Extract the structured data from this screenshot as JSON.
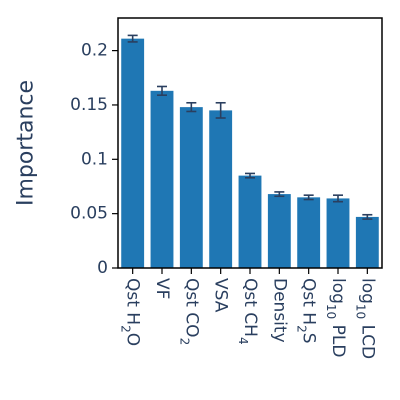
{
  "chart_data": {
    "type": "bar",
    "xlabel": "",
    "ylabel": "Importance",
    "ylim": [
      0,
      0.23
    ],
    "yticks": [
      0,
      0.05,
      0.1,
      0.15,
      0.2
    ],
    "ytick_labels": [
      "0",
      "0.05",
      "0.1",
      "0.15",
      "0.2"
    ],
    "grid": false,
    "categories": [
      {
        "label": "Qst H2O",
        "parts": [
          {
            "t": "Qst H"
          },
          {
            "t": "2",
            "sub": true
          },
          {
            "t": "O"
          }
        ]
      },
      {
        "label": "VF",
        "parts": [
          {
            "t": "VF"
          }
        ]
      },
      {
        "label": "Qst CO2",
        "parts": [
          {
            "t": "Qst CO"
          },
          {
            "t": "2",
            "sub": true
          }
        ]
      },
      {
        "label": "VSA",
        "parts": [
          {
            "t": "VSA"
          }
        ]
      },
      {
        "label": "Qst CH4",
        "parts": [
          {
            "t": "Qst CH"
          },
          {
            "t": "4",
            "sub": true
          }
        ]
      },
      {
        "label": "Density",
        "parts": [
          {
            "t": "Density"
          }
        ]
      },
      {
        "label": "Qst H2S",
        "parts": [
          {
            "t": "Qst H"
          },
          {
            "t": "2",
            "sub": true
          },
          {
            "t": "S"
          }
        ]
      },
      {
        "label": "log10 PLD",
        "parts": [
          {
            "t": "log"
          },
          {
            "t": "10",
            "sub": true
          },
          {
            "t": " PLD"
          }
        ]
      },
      {
        "label": "log10 LCD",
        "parts": [
          {
            "t": "log"
          },
          {
            "t": "10",
            "sub": true
          },
          {
            "t": " LCD"
          }
        ]
      }
    ],
    "values": [
      0.211,
      0.163,
      0.148,
      0.145,
      0.085,
      0.068,
      0.065,
      0.064,
      0.047
    ],
    "errors": [
      0.003,
      0.004,
      0.004,
      0.007,
      0.002,
      0.002,
      0.002,
      0.003,
      0.002
    ],
    "colors": {
      "bar": "#1f77b4",
      "errorbar": "#2a3f5f",
      "text": "#2a3f5f",
      "frame": "#000000"
    }
  }
}
